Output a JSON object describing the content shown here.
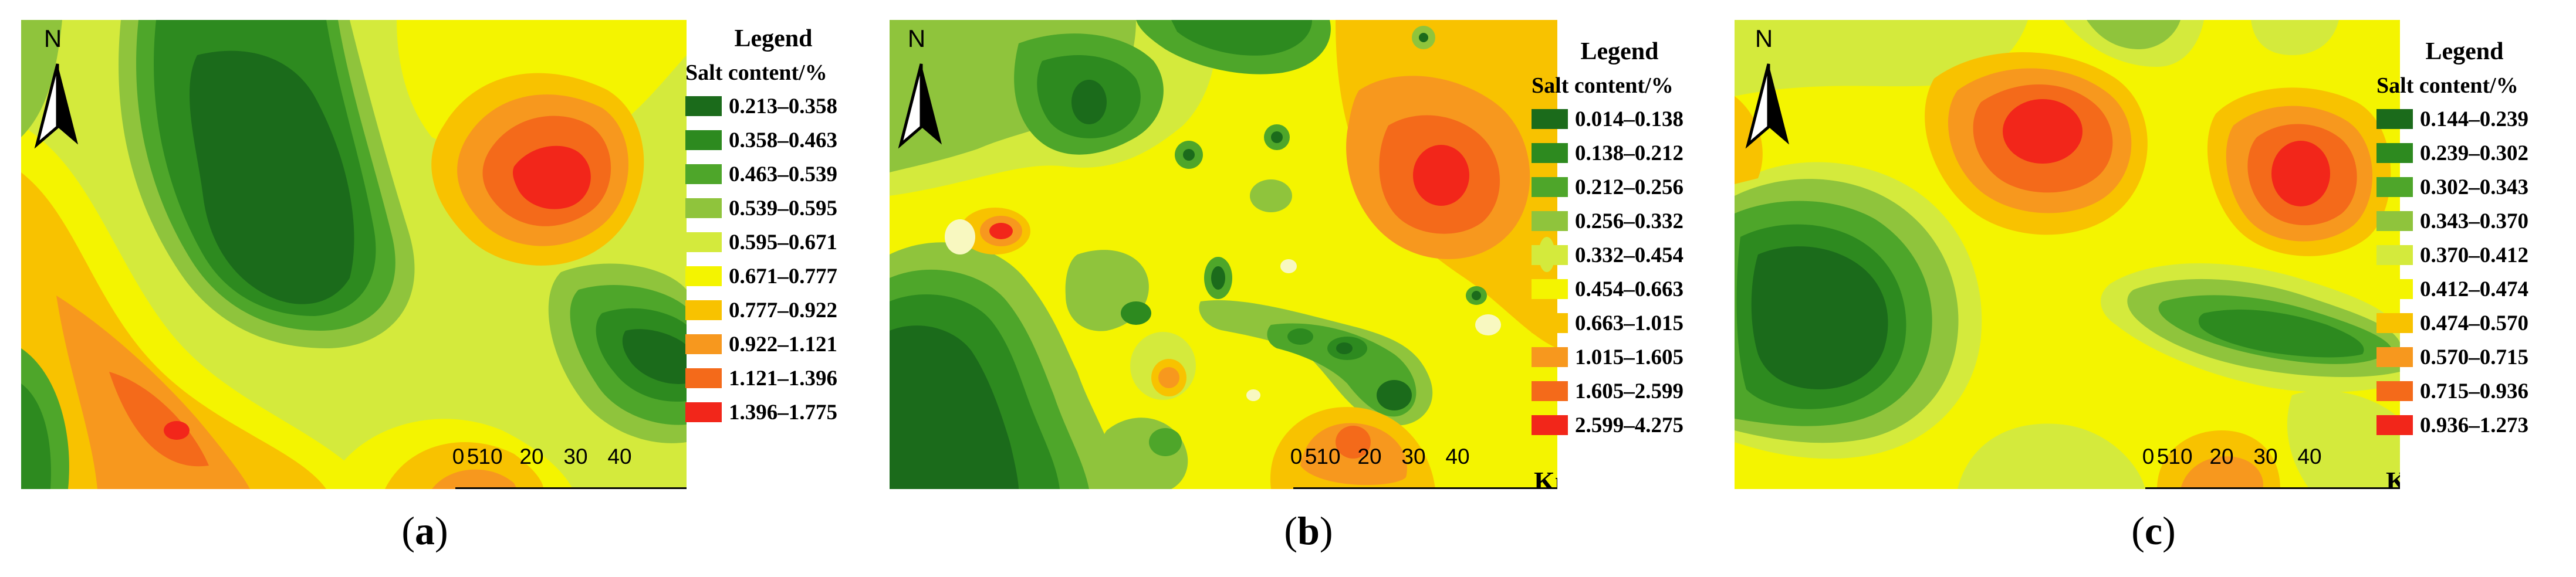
{
  "north_label": "N",
  "scale": {
    "ticks": [
      "0",
      "5",
      "10",
      "20",
      "30",
      "40"
    ],
    "unit": "Km"
  },
  "legend_title": "Legend",
  "legend_subtitle": "Salt content/%",
  "colors": [
    "#1b6b1b",
    "#2d8a1f",
    "#4ea62a",
    "#8fc43c",
    "#d4ea3c",
    "#f4f400",
    "#f8c200",
    "#f7981e",
    "#f46a1a",
    "#f2261a"
  ],
  "panels": [
    {
      "label": "a",
      "classes": [
        "0.213–0.358",
        "0.358–0.463",
        "0.463–0.539",
        "0.539–0.595",
        "0.595–0.671",
        "0.671–0.777",
        "0.777–0.922",
        "0.922–1.121",
        "1.121–1.396",
        "1.396–1.775"
      ]
    },
    {
      "label": "b",
      "classes": [
        "0.014–0.138",
        "0.138–0.212",
        "0.212–0.256",
        "0.256–0.332",
        "0.332–0.454",
        "0.454–0.663",
        "0.663–1.015",
        "1.015–1.605",
        "1.605–2.599",
        "2.599–4.275"
      ]
    },
    {
      "label": "c",
      "classes": [
        "0.144–0.239",
        "0.239–0.302",
        "0.302–0.343",
        "0.343–0.370",
        "0.370–0.412",
        "0.412–0.474",
        "0.474–0.570",
        "0.570–0.715",
        "0.715–0.936",
        "0.936–1.273"
      ]
    }
  ]
}
